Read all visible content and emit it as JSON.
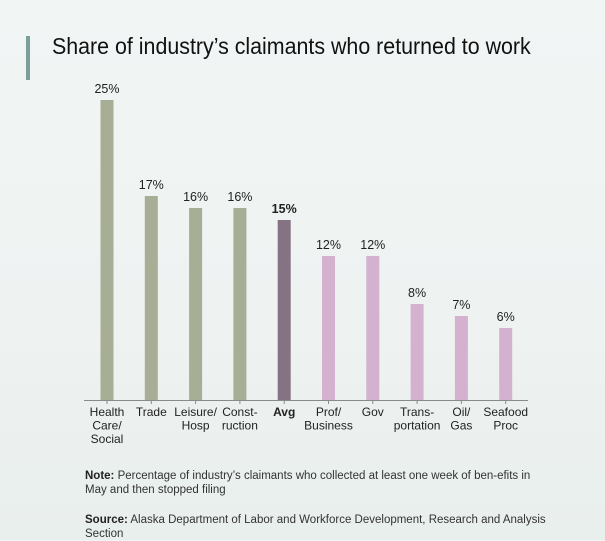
{
  "title": "Share of industry’s claimants who returned to work",
  "colors": {
    "industry": "#a8ad96",
    "average": "#857383",
    "below_avg": "#d4b2cf",
    "axis": "#8a8a8a",
    "text": "#222222"
  },
  "chart_data": {
    "type": "bar",
    "title": "Share of industry’s claimants who returned to work",
    "xlabel": "",
    "ylabel": "",
    "ylim": [
      0,
      25
    ],
    "grid": false,
    "categories": [
      "Health Care/ Social",
      "Trade",
      "Leisure/ Hosp",
      "Construction",
      "Avg",
      "Prof/ Business",
      "Gov",
      "Transportation",
      "Oil/ Gas",
      "Seafood Proc"
    ],
    "category_label_lines": [
      [
        "Health",
        "Care/",
        "Social"
      ],
      [
        "Trade"
      ],
      [
        "Leisure/",
        "Hosp"
      ],
      [
        "Const-",
        "ruction"
      ],
      [
        "Avg"
      ],
      [
        "Prof/",
        "Business"
      ],
      [
        "Gov"
      ],
      [
        "Trans-",
        "portation"
      ],
      [
        "Oil/",
        "Gas"
      ],
      [
        "Seafood",
        "Proc"
      ]
    ],
    "values": [
      25,
      17,
      16,
      16,
      15,
      12,
      12,
      8,
      7,
      6
    ],
    "value_labels": [
      "25%",
      "17%",
      "16%",
      "16%",
      "15%",
      "12%",
      "12%",
      "8%",
      "7%",
      "6%"
    ],
    "highlight_index": 4
  },
  "note": {
    "label": "Note:",
    "text": "Percentage of industry’s claimants who collected at least one week of ben-efits in May and then stopped filing"
  },
  "source": {
    "label": "Source:",
    "text": "Alaska Department of Labor and  Workforce Development, Research and Analysis Section"
  }
}
